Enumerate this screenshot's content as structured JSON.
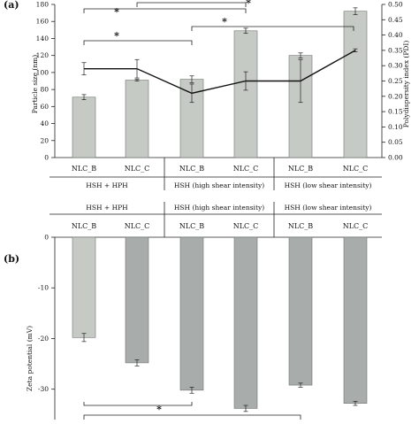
{
  "chart_data": [
    {
      "panel": "(a)",
      "type": "bar",
      "categories": [
        "NLC_B",
        "NLC_C",
        "NLC_B",
        "NLC_C",
        "NLC_B",
        "NLC_C"
      ],
      "groups": [
        "HSH + HPH",
        "HSH (high shear intensity)",
        "HSH (low shear intensity)"
      ],
      "ylabel": "Particle size (nm)",
      "y2label": "Polydispersity index (PDI)",
      "ylim": [
        0,
        180
      ],
      "yticks": [
        "0",
        "20",
        "40",
        "60",
        "80",
        "100",
        "120",
        "140",
        "160",
        "180"
      ],
      "y2lim": [
        0,
        0.5
      ],
      "y2ticks": [
        "0.00",
        "0.05",
        "0.10",
        "0.15",
        "0.20",
        "0.25",
        "0.30",
        "0.35",
        "0.40",
        "0.45",
        "0.50"
      ],
      "series": [
        {
          "values": [
            71,
            91,
            92,
            149,
            120,
            172
          ],
          "errors": [
            3,
            1,
            4,
            3,
            3,
            4
          ],
          "colors": [
            "#c6cac5",
            "#c6cac5",
            "#c6cac5",
            "#c6cac5",
            "#c6cac5",
            "#c6cac5"
          ]
        },
        {
          "values": [
            0.29,
            0.29,
            0.21,
            0.25,
            0.25,
            0.35
          ],
          "errors": [
            0.02,
            0.03,
            0.03,
            0.03,
            0.07,
            0.005
          ]
        }
      ],
      "significance": [
        "*",
        "*",
        "*",
        "*"
      ]
    },
    {
      "panel": "(b)",
      "type": "bar",
      "categories": [
        "NLC_B",
        "NLC_C",
        "NLC_B",
        "NLC_C",
        "NLC_B",
        "NLC_C"
      ],
      "groups": [
        "HSH + HPH",
        "HSH (high shear intensity)",
        "HSH (low shear intensity)"
      ],
      "ylabel": "Zeta potential (mV)",
      "ylim": [
        -36,
        0
      ],
      "yticks": [
        "0",
        "-10",
        "-20",
        "-30"
      ],
      "series": [
        {
          "values": [
            -19.8,
            -24.8,
            -30.2,
            -33.8,
            -29.2,
            -32.8
          ],
          "errors": [
            0.8,
            0.6,
            0.6,
            0.6,
            0.4,
            0.4
          ],
          "colors": [
            "#c6cac5",
            "#a8acab",
            "#a8acab",
            "#a8acab",
            "#a8acab",
            "#a8acab"
          ]
        }
      ],
      "significance": [
        "*"
      ]
    }
  ]
}
